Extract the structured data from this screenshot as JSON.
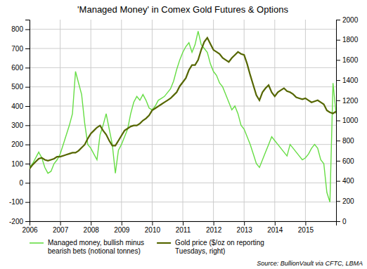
{
  "chart_data": {
    "type": "line",
    "title": "'Managed Money' in Comex Gold Futures & Options",
    "source": "Source: BullionVault via CFTC, LBMA",
    "x": [
      2006.0,
      2006.1,
      2006.2,
      2006.3,
      2006.4,
      2006.5,
      2006.6,
      2006.7,
      2006.8,
      2006.9,
      2007.0,
      2007.1,
      2007.2,
      2007.3,
      2007.4,
      2007.5,
      2007.6,
      2007.7,
      2007.8,
      2007.9,
      2008.0,
      2008.1,
      2008.2,
      2008.3,
      2008.4,
      2008.5,
      2008.6,
      2008.7,
      2008.8,
      2008.9,
      2009.0,
      2009.1,
      2009.2,
      2009.3,
      2009.4,
      2009.5,
      2009.6,
      2009.7,
      2009.8,
      2009.9,
      2010.0,
      2010.1,
      2010.2,
      2010.3,
      2010.4,
      2010.5,
      2010.6,
      2010.7,
      2010.8,
      2010.9,
      2011.0,
      2011.1,
      2011.2,
      2011.3,
      2011.4,
      2011.5,
      2011.6,
      2011.7,
      2011.8,
      2011.9,
      2012.0,
      2012.1,
      2012.2,
      2012.3,
      2012.4,
      2012.5,
      2012.6,
      2012.7,
      2012.8,
      2012.9,
      2013.0,
      2013.1,
      2013.2,
      2013.3,
      2013.4,
      2013.5,
      2013.6,
      2013.7,
      2013.8,
      2013.9,
      2014.0,
      2014.1,
      2014.2,
      2014.3,
      2014.4,
      2014.5,
      2014.6,
      2014.7,
      2014.8,
      2014.9,
      2015.0,
      2015.1,
      2015.2,
      2015.3,
      2015.4,
      2015.5,
      2015.6,
      2015.7,
      2015.8,
      2015.9,
      2016.0
    ],
    "xlim": [
      2006.0,
      2016.0
    ],
    "xticks": [
      2006,
      2007,
      2008,
      2009,
      2010,
      2011,
      2012,
      2013,
      2014,
      2015
    ],
    "ylim": [
      -200,
      850
    ],
    "yticks": [
      -200,
      -100,
      0,
      100,
      200,
      300,
      400,
      500,
      600,
      700,
      800
    ],
    "y2lim": [
      0,
      2000
    ],
    "y2ticks": [
      0,
      200,
      400,
      600,
      800,
      1000,
      1200,
      1400,
      1600,
      1800,
      2000
    ],
    "grid": true,
    "legend": "lower left",
    "series": [
      {
        "name": "Managed money, bullish minus\nbearish bets (notional tonnes)",
        "color": "#66DD44",
        "values": [
          80,
          100,
          130,
          160,
          130,
          80,
          50,
          60,
          100,
          120,
          150,
          200,
          250,
          300,
          360,
          580,
          520,
          460,
          310,
          200,
          180,
          150,
          120,
          250,
          300,
          360,
          280,
          200,
          50,
          170,
          200,
          240,
          280,
          360,
          420,
          450,
          430,
          460,
          430,
          390,
          380,
          400,
          430,
          440,
          450,
          470,
          490,
          530,
          590,
          640,
          680,
          710,
          730,
          680,
          720,
          790,
          720,
          700,
          680,
          620,
          580,
          560,
          520,
          500,
          460,
          420,
          380,
          400,
          360,
          300,
          280,
          240,
          200,
          150,
          100,
          80,
          120,
          160,
          200,
          240,
          220,
          200,
          180,
          160,
          140,
          200,
          180,
          160,
          140,
          120,
          130,
          150,
          180,
          200,
          180,
          120,
          100,
          -50,
          -100,
          520,
          360
        ]
      },
      {
        "name": "Gold price ($/oz on reporting\nTuesdays, right)",
        "color": "#556600",
        "axis": "y2",
        "values": [
          520,
          560,
          590,
          620,
          630,
          610,
          600,
          610,
          620,
          640,
          640,
          650,
          660,
          670,
          680,
          680,
          700,
          730,
          760,
          820,
          870,
          900,
          930,
          950,
          900,
          860,
          800,
          750,
          750,
          800,
          850,
          900,
          920,
          940,
          950,
          950,
          970,
          1000,
          1020,
          1050,
          1100,
          1120,
          1140,
          1160,
          1180,
          1200,
          1220,
          1250,
          1280,
          1340,
          1380,
          1420,
          1500,
          1550,
          1550,
          1600,
          1700,
          1780,
          1820,
          1760,
          1700,
          1680,
          1660,
          1620,
          1600,
          1580,
          1620,
          1650,
          1680,
          1660,
          1650,
          1560,
          1450,
          1350,
          1250,
          1200,
          1280,
          1320,
          1350,
          1280,
          1240,
          1280,
          1300,
          1320,
          1290,
          1280,
          1260,
          1230,
          1220,
          1210,
          1220,
          1200,
          1180,
          1190,
          1200,
          1180,
          1160,
          1100,
          1080,
          1070,
          1090
        ]
      }
    ]
  }
}
